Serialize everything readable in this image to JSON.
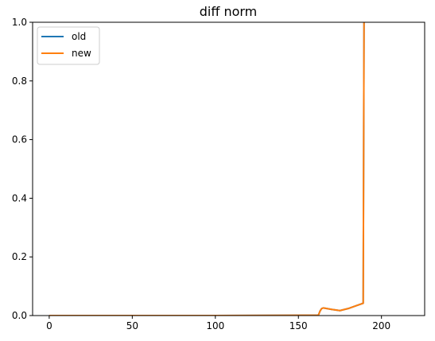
{
  "chart_data": {
    "type": "line",
    "title": "diff norm",
    "xlabel": "",
    "ylabel": "",
    "xlim": [
      -10,
      226
    ],
    "ylim": [
      0,
      1
    ],
    "x_ticks": [
      0,
      50,
      100,
      150,
      200
    ],
    "x_tick_labels": [
      "0",
      "50",
      "100",
      "150",
      "200"
    ],
    "y_ticks": [
      0.0,
      0.2,
      0.4,
      0.6,
      0.8,
      1.0
    ],
    "y_tick_labels": [
      "0.0",
      "0.2",
      "0.4",
      "0.6",
      "0.8",
      "1.0"
    ],
    "grid": false,
    "legend_position": "top-left",
    "series": [
      {
        "name": "old",
        "color": "#1f77b4",
        "x": [
          0,
          100,
          162,
          163,
          164,
          165,
          170,
          175,
          180,
          185,
          189,
          189.5,
          190
        ],
        "y": [
          0.0,
          0.0,
          0.001,
          0.015,
          0.024,
          0.026,
          0.021,
          0.017,
          0.024,
          0.034,
          0.042,
          1.0,
          1.0
        ]
      },
      {
        "name": "new",
        "color": "#ff7f0e",
        "x": [
          0,
          100,
          162,
          163,
          164,
          165,
          170,
          175,
          180,
          185,
          189,
          189.5,
          190
        ],
        "y": [
          0.0,
          0.0,
          0.001,
          0.015,
          0.024,
          0.026,
          0.021,
          0.017,
          0.024,
          0.034,
          0.042,
          1.0,
          1.0
        ]
      }
    ]
  }
}
